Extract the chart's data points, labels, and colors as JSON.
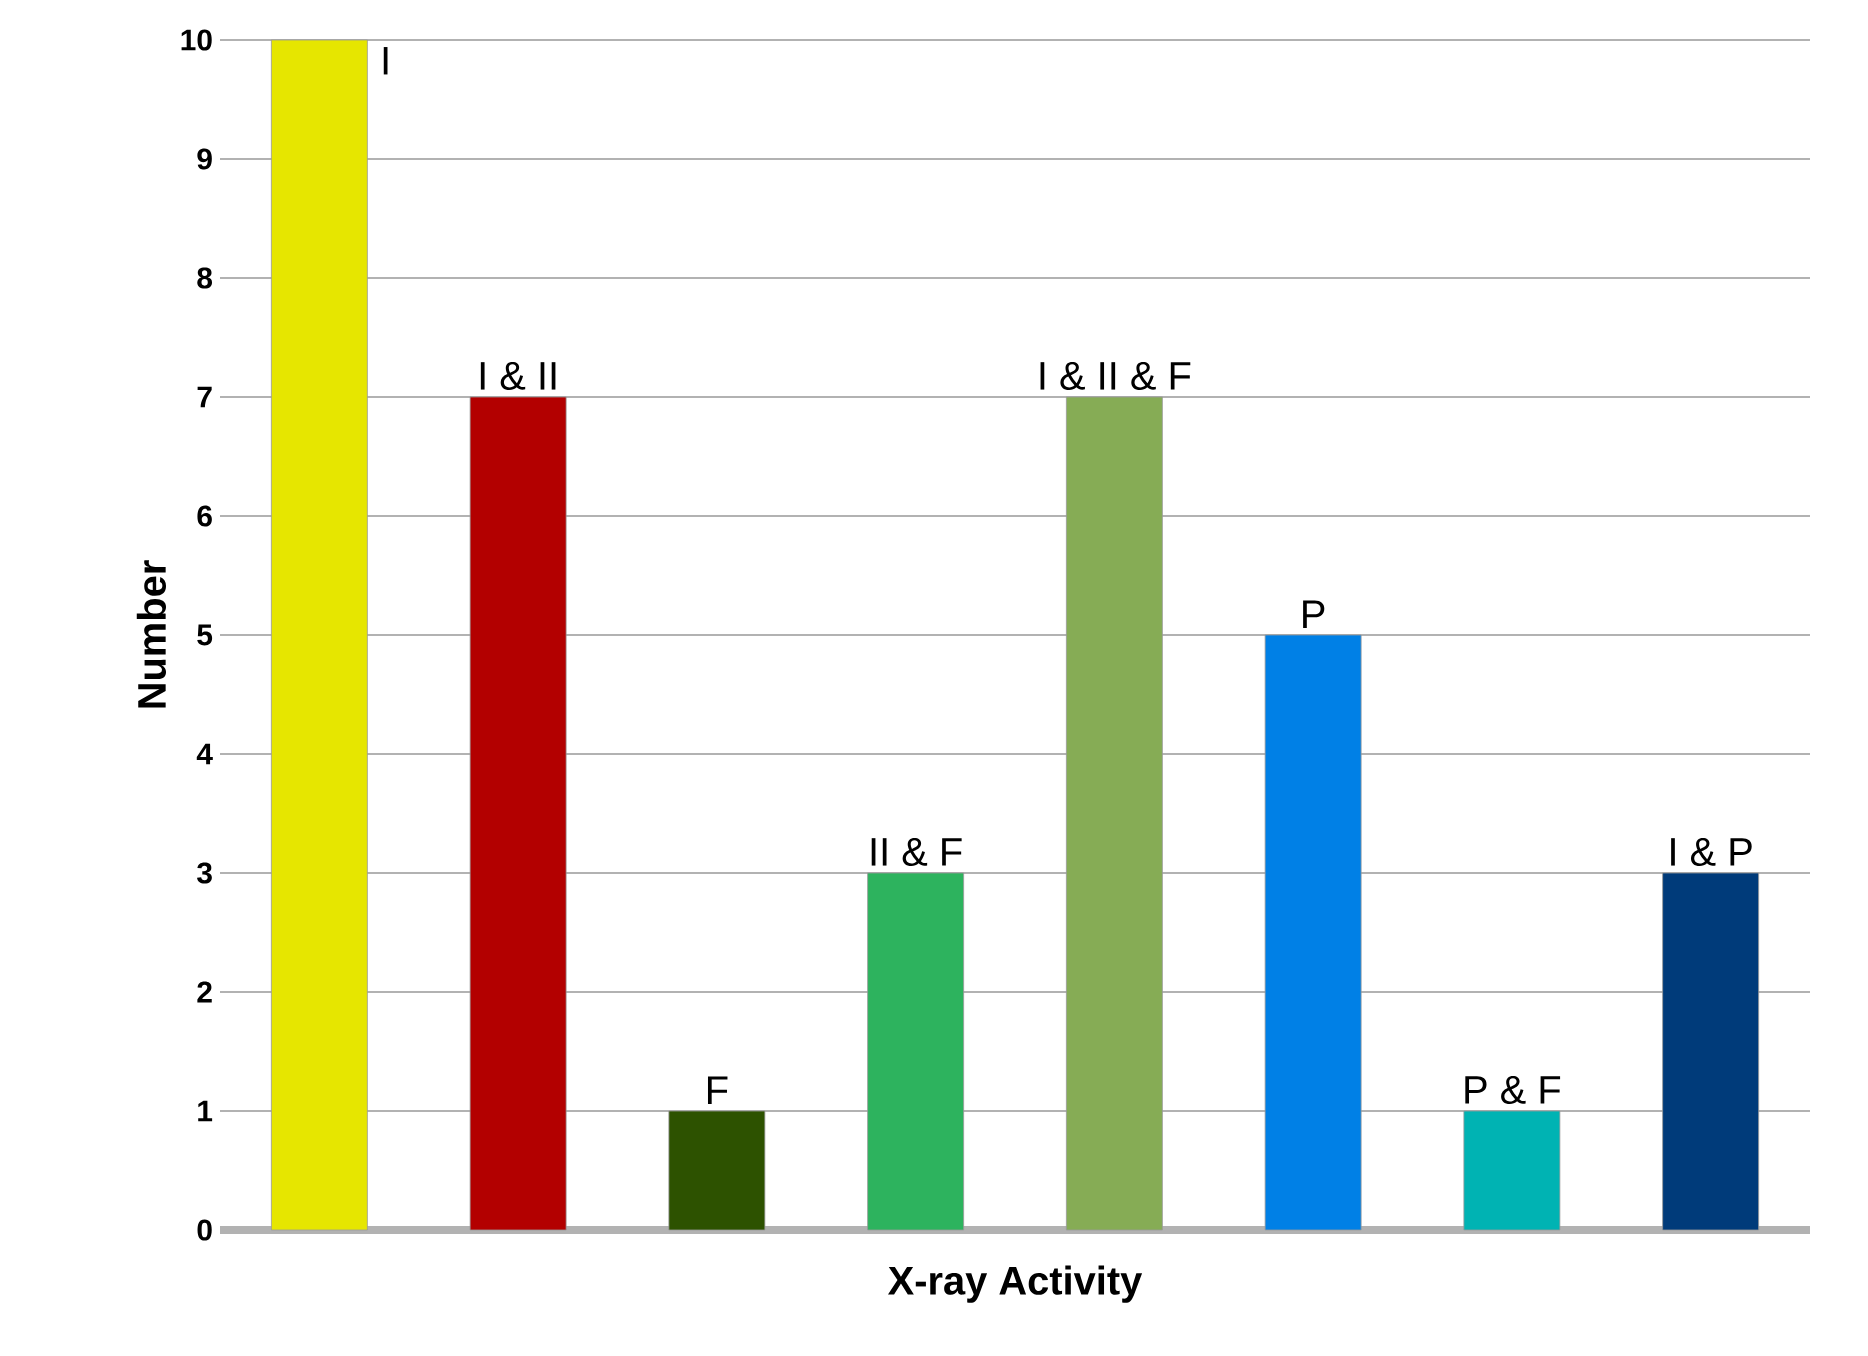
{
  "chart_data": {
    "type": "bar",
    "xlabel": "X-ray Activity",
    "ylabel": "Number",
    "categories": [
      "I",
      "I & II",
      "F",
      "II & F",
      "I & II & F",
      "P",
      "P & F",
      "I & P"
    ],
    "values": [
      10,
      7,
      1,
      3,
      7,
      5,
      1,
      3
    ],
    "colors": [
      "#e6e600",
      "#b30000",
      "#2d5200",
      "#2db35e",
      "#86ac55",
      "#0080e6",
      "#00b3b3",
      "#003b7a"
    ],
    "ylim": [
      0,
      10
    ],
    "yticks": [
      0,
      1,
      2,
      3,
      4,
      5,
      6,
      7,
      8,
      9,
      10
    ],
    "grid": "y"
  }
}
